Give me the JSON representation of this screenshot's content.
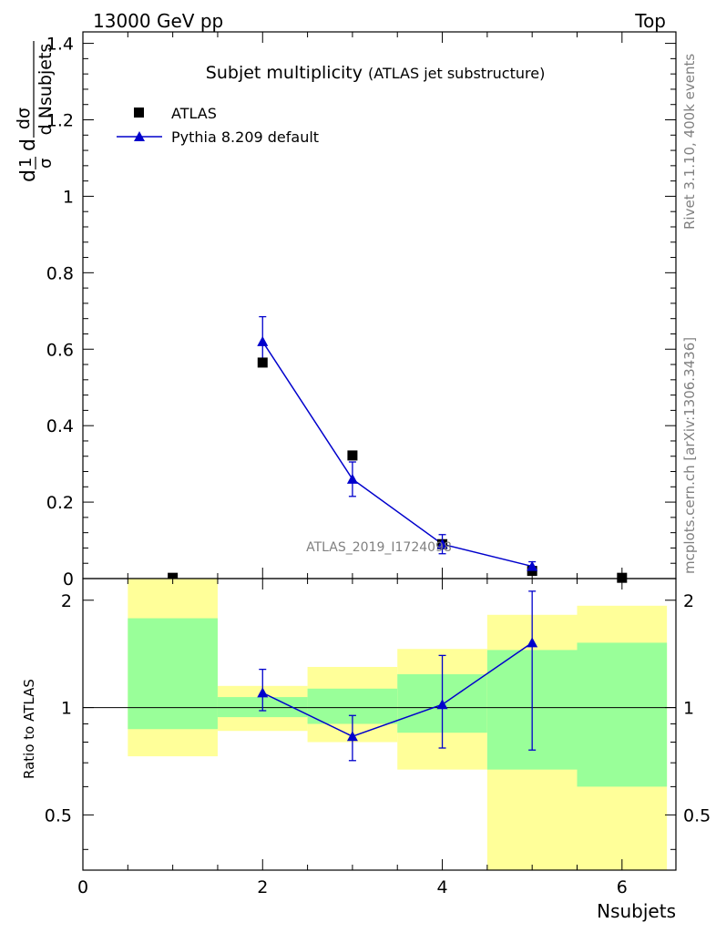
{
  "header": {
    "energy_label": "13000 GeV pp",
    "process_label": "Top"
  },
  "side_labels": {
    "rivet": "Rivet 3.1.10,  400k events",
    "source": "mcplots.cern.ch [arXiv:1306.3436]"
  },
  "watermark": "ATLAS_2019_I1724098",
  "colors": {
    "data": "#000000",
    "mc": "#0000cc",
    "band_inner": "#99ff99",
    "band_outer": "#ffff99"
  },
  "chart_data": [
    {
      "type": "scatter",
      "title": "Subjet multiplicity",
      "subtitle": "(ATLAS jet substructure)",
      "xlabel": "Nsubjets",
      "ylabel_parts": {
        "one": "1",
        "sigma": "σ",
        "d": "d",
        "dsigma": "dσ",
        "dvar": "d Nsubjets"
      },
      "xlim": [
        0,
        6.6
      ],
      "ylim": [
        0,
        1.43
      ],
      "yticks": [
        0,
        0.2,
        0.4,
        0.6,
        0.8,
        1,
        1.2,
        1.4
      ],
      "ytick_labels": [
        "0",
        "0.2",
        "0.4",
        "0.6",
        "0.8",
        "1",
        "1.2",
        "1.4"
      ],
      "legend_position": "top-left",
      "series": [
        {
          "name": "ATLAS",
          "marker": "square",
          "x": [
            1,
            2,
            3,
            4,
            5,
            6
          ],
          "y": [
            0.002,
            0.565,
            0.322,
            0.09,
            0.02,
            0.002
          ]
        },
        {
          "name": "Pythia 8.209 default",
          "marker": "triangle",
          "x": [
            2,
            3,
            4,
            5
          ],
          "y": [
            0.62,
            0.26,
            0.09,
            0.032
          ],
          "yerr": [
            0.065,
            0.045,
            0.025,
            0.012
          ]
        }
      ]
    },
    {
      "type": "scatter",
      "ylabel": "Ratio to ATLAS",
      "xlabel": "Nsubjets",
      "xlim": [
        0,
        6.6
      ],
      "ylim": [
        0.35,
        2.3
      ],
      "log_y": true,
      "xticks": [
        0,
        2,
        4,
        6
      ],
      "xtick_labels": [
        "0",
        "2",
        "4",
        "6"
      ],
      "yticks": [
        0.5,
        1,
        2
      ],
      "ytick_labels": [
        "0.5",
        "1",
        "2"
      ],
      "bands": [
        {
          "x0": 0.5,
          "x1": 1.5,
          "inner": [
            0.87,
            1.78
          ],
          "outer": [
            0.73,
            2.3
          ]
        },
        {
          "x0": 1.5,
          "x1": 2.5,
          "inner": [
            0.94,
            1.07
          ],
          "outer": [
            0.86,
            1.15
          ]
        },
        {
          "x0": 2.5,
          "x1": 3.5,
          "inner": [
            0.9,
            1.13
          ],
          "outer": [
            0.8,
            1.3
          ]
        },
        {
          "x0": 3.5,
          "x1": 4.5,
          "inner": [
            0.85,
            1.24
          ],
          "outer": [
            0.67,
            1.46
          ]
        },
        {
          "x0": 4.5,
          "x1": 5.5,
          "inner": [
            0.67,
            1.45
          ],
          "outer": [
            0.35,
            1.82
          ]
        },
        {
          "x0": 5.5,
          "x1": 6.5,
          "inner": [
            0.6,
            1.52
          ],
          "outer": [
            0.35,
            1.93
          ]
        }
      ],
      "series": [
        {
          "name": "Pythia 8.209 default",
          "x": [
            2,
            3,
            4,
            5
          ],
          "y": [
            1.1,
            0.83,
            1.02,
            1.52
          ],
          "yerr_low": [
            0.12,
            0.12,
            0.25,
            0.76
          ],
          "yerr_high": [
            0.18,
            0.12,
            0.38,
            0.6
          ]
        }
      ]
    }
  ]
}
